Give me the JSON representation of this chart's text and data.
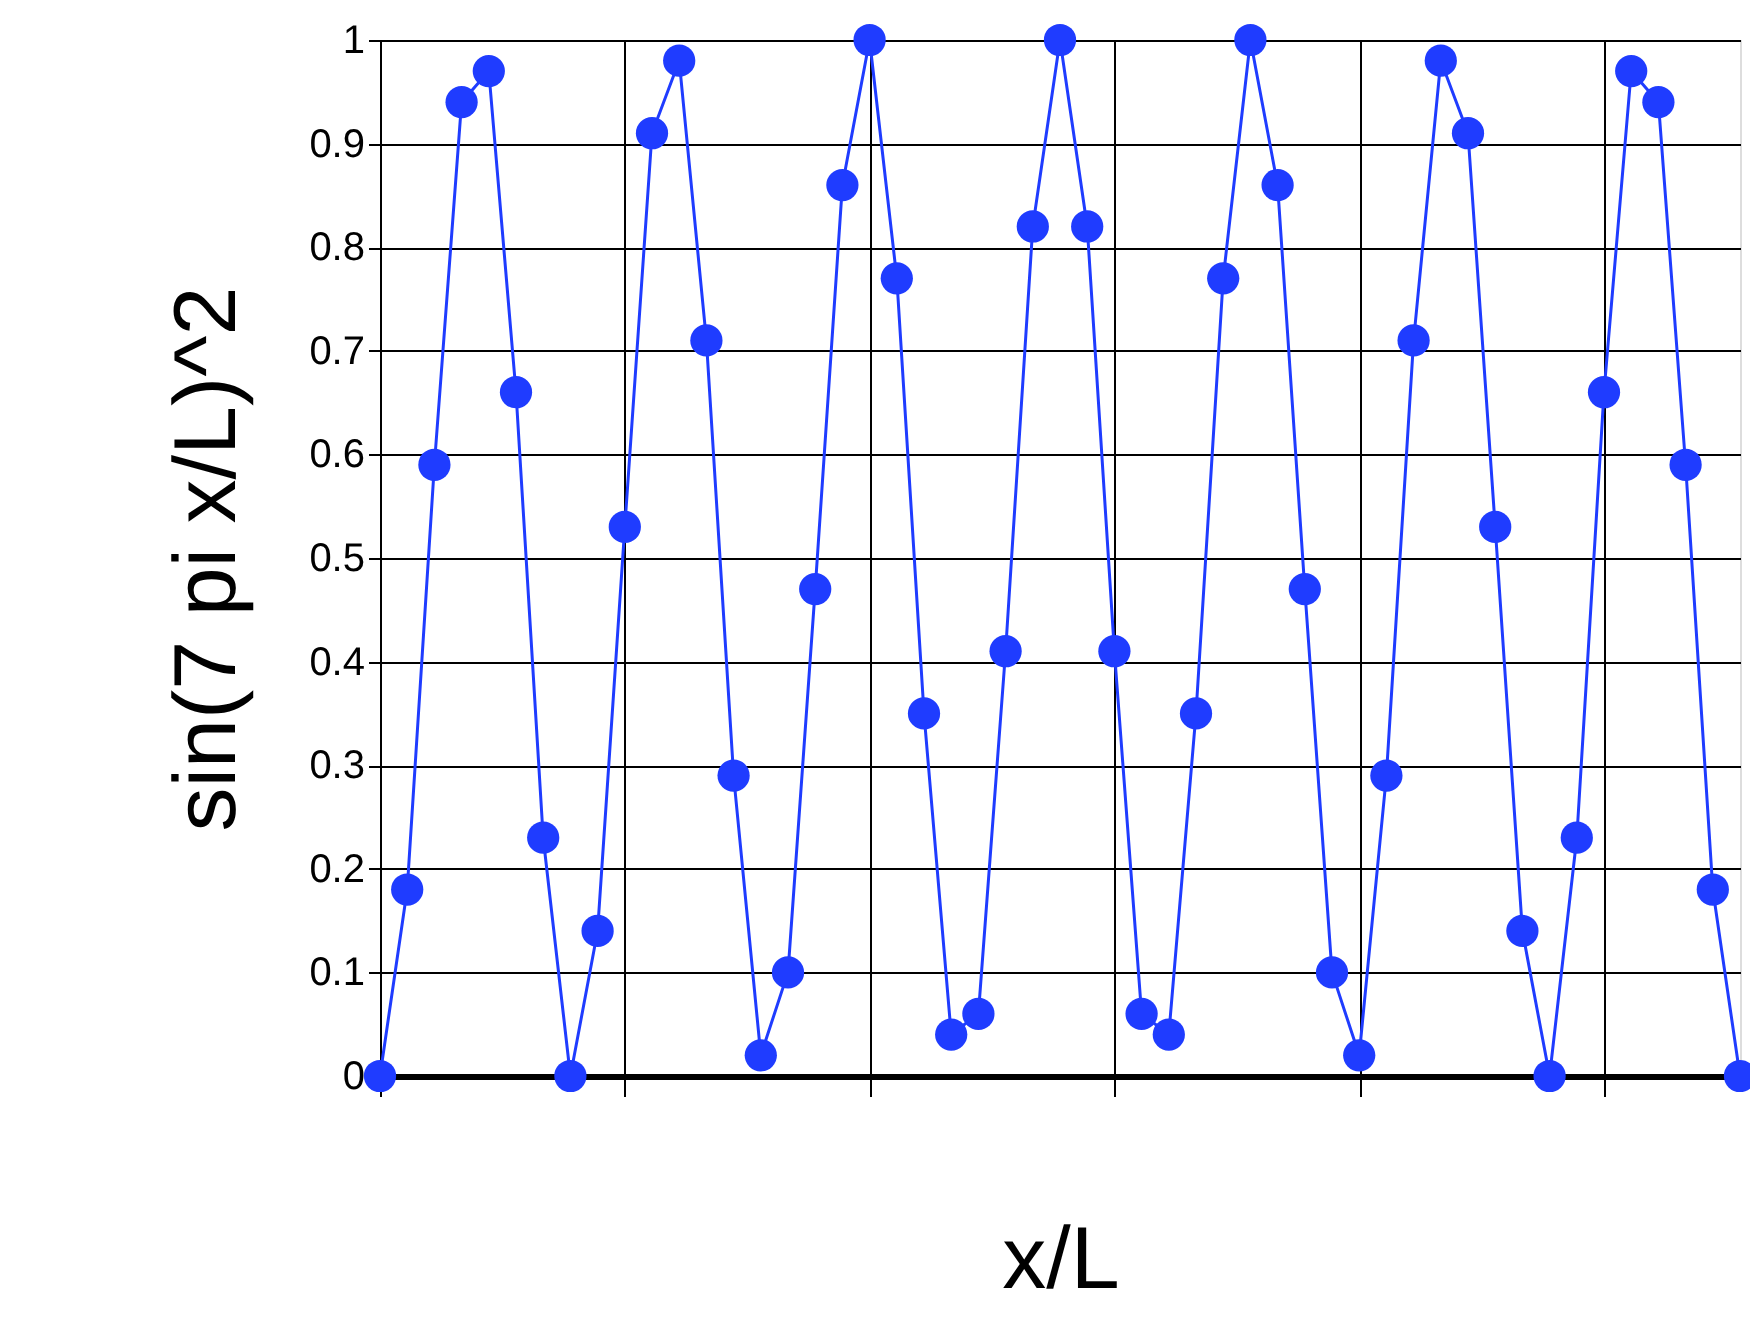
{
  "chart_data": {
    "type": "line",
    "xlabel": "x/L",
    "ylabel": "sin(7 pi x/L)^2",
    "categories": [
      null,
      null,
      null,
      null,
      null,
      null,
      null,
      null,
      null,
      null,
      null,
      null,
      null,
      null,
      null,
      null,
      null,
      null,
      null,
      null,
      null,
      null,
      null,
      null,
      null,
      null,
      null,
      null,
      null,
      null,
      null,
      null,
      null,
      null,
      null,
      null,
      null,
      null,
      null,
      null,
      null,
      null,
      null,
      null,
      null,
      null,
      null,
      null,
      null,
      null,
      null
    ],
    "series": [
      {
        "color": "#1f3cff",
        "values": [
          0,
          0.18,
          0.59,
          0.94,
          0.97,
          0.66,
          0.23,
          0.0,
          0.14,
          0.53,
          0.91,
          0.98,
          0.71,
          0.29,
          0.02,
          0.1,
          0.47,
          0.86,
          1.0,
          0.77,
          0.35,
          0.04,
          0.06,
          0.41,
          0.82,
          1.0,
          0.82,
          0.41,
          0.06,
          0.04,
          0.35,
          0.77,
          1.0,
          0.86,
          0.47,
          0.1,
          0.02,
          0.29,
          0.71,
          0.98,
          0.91,
          0.53,
          0.14,
          0.0,
          0.23,
          0.66,
          0.97,
          0.94,
          0.59,
          0.18,
          0
        ]
      }
    ],
    "ylim": [
      0,
      1
    ],
    "yticks": [
      0,
      0.1,
      0.2,
      0.3,
      0.4,
      0.5,
      0.6,
      0.7,
      0.8,
      0.9,
      1
    ],
    "tick_labels": "y",
    "grid": true,
    "marker": "circle",
    "line_style": "solid"
  }
}
